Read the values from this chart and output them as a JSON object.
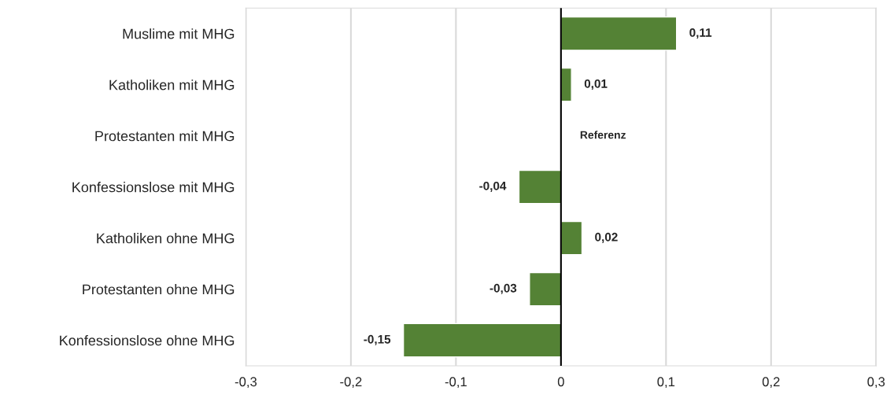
{
  "chart_data": {
    "type": "bar",
    "orientation": "horizontal",
    "categories": [
      "Muslime mit MHG",
      "Katholiken mit MHG",
      "Protestanten mit MHG",
      "Konfessionslose mit MHG",
      "Katholiken ohne MHG",
      "Protestanten ohne MHG",
      "Konfessionslose ohne MHG"
    ],
    "values": [
      0.11,
      0.01,
      null,
      -0.04,
      0.02,
      -0.03,
      -0.15
    ],
    "value_labels": [
      "0,11",
      "0,01",
      "Referenz",
      "-0,04",
      "0,02",
      "-0,03",
      "-0,15"
    ],
    "color": "#548235",
    "xlim": [
      -0.3,
      0.3
    ],
    "xticks": [
      {
        "value": -0.3,
        "label": "-0,3"
      },
      {
        "value": -0.2,
        "label": "-0,2"
      },
      {
        "value": -0.1,
        "label": "-0,1"
      },
      0,
      {
        "value": 0.1,
        "label": "0,1"
      },
      {
        "value": 0.2,
        "label": "0,2"
      },
      {
        "value": 0.3,
        "label": "0,3"
      }
    ],
    "ref_lines": [
      {
        "axis": "x",
        "value": 0,
        "color": "#000000"
      }
    ],
    "grid": "x"
  }
}
